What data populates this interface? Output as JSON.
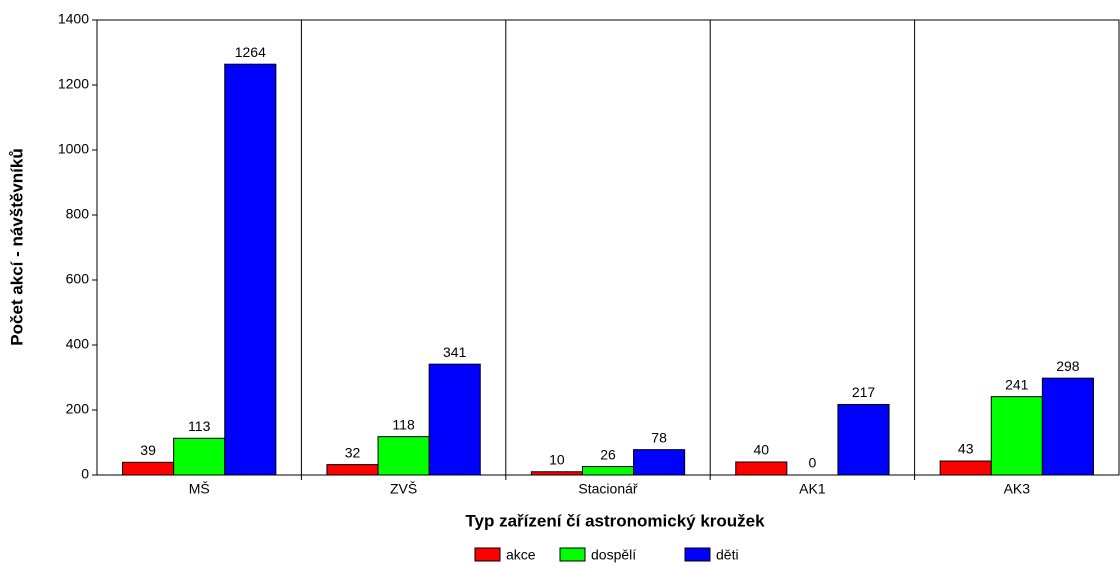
{
  "chart_data": {
    "type": "bar",
    "x_label": "Typ zařízení čí astronomický kroužek",
    "y_label": "Počet akcí - návštěvníků",
    "categories": [
      "MŠ",
      "ZVŠ",
      "Stacionář",
      "AK1",
      "AK3"
    ],
    "series": [
      {
        "name": "akce",
        "color": "#ff0000",
        "values": [
          39,
          32,
          10,
          40,
          43
        ]
      },
      {
        "name": "dospělí",
        "color": "#00ff00",
        "values": [
          113,
          118,
          26,
          0,
          241
        ]
      },
      {
        "name": "děti",
        "color": "#0000ff",
        "values": [
          1264,
          341,
          78,
          217,
          298
        ]
      }
    ],
    "ylim": [
      0,
      1400
    ],
    "yticks": [
      0,
      200,
      400,
      600,
      800,
      1000,
      1200,
      1400
    ],
    "legend": "bottom"
  }
}
